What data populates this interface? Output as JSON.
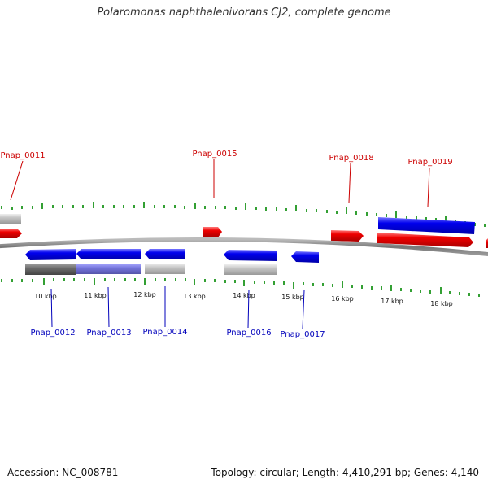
{
  "title": "Polaromonas naphthalenivorans CJ2, complete genome",
  "footer": {
    "accession": "Accession: NC_008781",
    "summary": "Topology: circular; Length: 4,410,291 bp; Genes: 4,140"
  },
  "colors": {
    "forward": "#ee0000",
    "reverse": "#0000ee",
    "forward_label": "#cc0000",
    "reverse_label": "#0000bb",
    "tick": "#008800",
    "backbone": "#777777",
    "grey_bar": "#bbbbbb",
    "dark_bar": "#666666",
    "lavender_bar": "#7777dd"
  },
  "scale": {
    "tick_labels": [
      "10 kbp",
      "11 kbp",
      "12 kbp",
      "13 kbp",
      "14 kbp",
      "15 kbp",
      "16 kbp",
      "17 kbp",
      "18 kbp"
    ]
  },
  "genes": {
    "top": [
      "Pnap_0011",
      "Pnap_0015",
      "Pnap_0018",
      "Pnap_0019"
    ],
    "bottom": [
      "Pnap_0012",
      "Pnap_0013",
      "Pnap_0014",
      "Pnap_0016",
      "Pnap_0017"
    ]
  }
}
